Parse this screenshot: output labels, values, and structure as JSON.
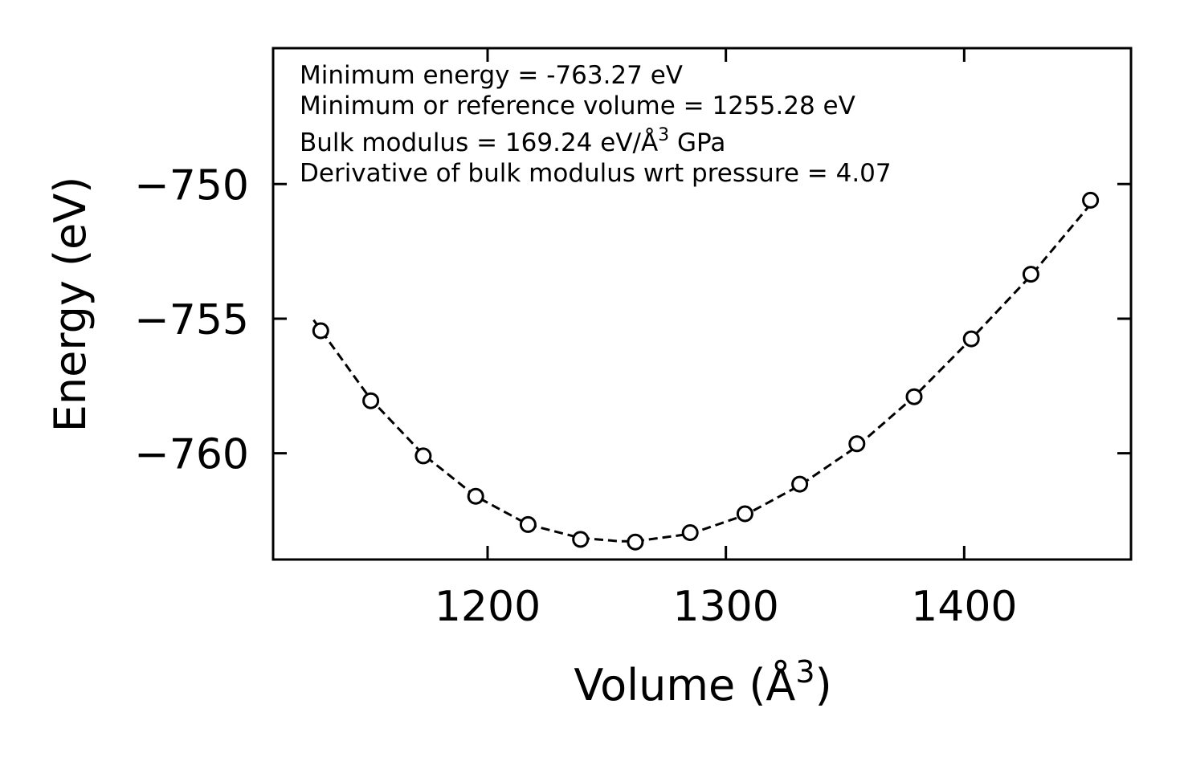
{
  "chart_data": {
    "type": "scatter",
    "title": "",
    "xlabel": "Volume (Å",
    "xlabel_superscript": "3",
    "xlabel_suffix": ")",
    "ylabel": "Energy (eV)",
    "xlim": [
      1110,
      1470
    ],
    "ylim": [
      -763.95,
      -744.95
    ],
    "xticks": [
      1200,
      1300,
      1400
    ],
    "xtick_labels": [
      "1200",
      "1300",
      "1400"
    ],
    "yticks": [
      -750,
      -755,
      -760
    ],
    "ytick_labels": [
      "−750",
      "−755",
      "−760"
    ],
    "grid": false,
    "series": [
      {
        "name": "data",
        "style": "open-circle",
        "color": "#000000",
        "x": [
          1130,
          1151,
          1173,
          1195,
          1217,
          1239,
          1262,
          1285,
          1308,
          1331,
          1355,
          1379,
          1403,
          1428,
          1453
        ],
        "y": [
          -755.45,
          -758.05,
          -760.1,
          -761.6,
          -762.65,
          -763.2,
          -763.3,
          -762.95,
          -762.25,
          -761.15,
          -759.65,
          -757.9,
          -755.75,
          -753.35,
          -750.6
        ]
      },
      {
        "name": "fit",
        "style": "dashed-line",
        "color": "#000000",
        "x": [
          1127,
          1151,
          1173,
          1195,
          1217,
          1239,
          1255.28,
          1262,
          1285,
          1308,
          1331,
          1355,
          1379,
          1403,
          1428,
          1453
        ],
        "y": [
          -755.05,
          -758.0,
          -760.05,
          -761.6,
          -762.65,
          -763.15,
          -763.27,
          -763.27,
          -763.0,
          -762.3,
          -761.2,
          -759.75,
          -757.9,
          -755.75,
          -753.4,
          -750.75
        ]
      }
    ],
    "annotations": {
      "line1": "Minimum energy = -763.27 eV",
      "line2": "Minimum or reference volume = 1255.28 eV",
      "line3_prefix": "Bulk modulus = 169.24 eV/Å",
      "line3_superscript": "3",
      "line3_suffix": " GPa",
      "line4": "Derivative of bulk modulus wrt pressure = 4.07"
    }
  }
}
